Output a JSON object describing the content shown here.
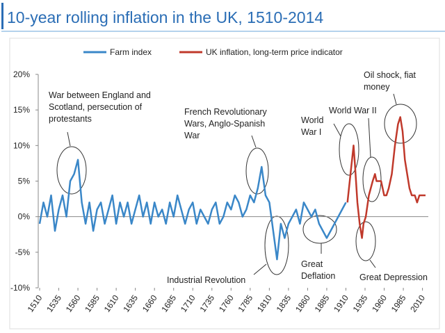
{
  "chart_data": {
    "type": "line",
    "title": "10-year rolling inflation in the UK, 1510-2014",
    "series": [
      {
        "name": "Farm index",
        "color": "#3a87c8",
        "x": [
          1510,
          1515,
          1520,
          1525,
          1530,
          1535,
          1540,
          1545,
          1550,
          1555,
          1560,
          1565,
          1570,
          1575,
          1580,
          1585,
          1590,
          1595,
          1600,
          1605,
          1610,
          1615,
          1620,
          1625,
          1630,
          1635,
          1640,
          1645,
          1650,
          1655,
          1660,
          1665,
          1670,
          1675,
          1680,
          1685,
          1690,
          1695,
          1700,
          1705,
          1710,
          1715,
          1720,
          1725,
          1730,
          1735,
          1740,
          1745,
          1750,
          1755,
          1760,
          1765,
          1770,
          1775,
          1780,
          1785,
          1790,
          1795,
          1800,
          1805,
          1810,
          1815,
          1820,
          1825,
          1830,
          1835,
          1840,
          1845,
          1850,
          1855,
          1860,
          1865,
          1870,
          1875,
          1880,
          1885,
          1890,
          1895,
          1900,
          1905,
          1910
        ],
        "values": [
          -1,
          2,
          0,
          3,
          -2,
          1,
          3,
          0,
          5,
          6,
          8,
          2,
          -1,
          2,
          -2,
          1,
          2,
          -1,
          1,
          3,
          -1,
          2,
          0,
          2,
          -1,
          1,
          3,
          0,
          2,
          -1,
          2,
          0,
          1,
          -1,
          2,
          0,
          3,
          1,
          -1,
          1,
          2,
          -1,
          1,
          0,
          -1,
          1,
          2,
          -1,
          0,
          2,
          1,
          3,
          2,
          0,
          1,
          3,
          2,
          4,
          7,
          3,
          2,
          -2,
          -6,
          -1,
          -3,
          -1,
          0,
          1,
          -1,
          2,
          1,
          0,
          1,
          -1,
          -2,
          -3,
          -2,
          -1,
          0,
          1,
          2
        ]
      },
      {
        "name": "UK inflation, long-term price indicator",
        "color": "#c0392b",
        "x": [
          1912,
          1915,
          1918,
          1920,
          1922,
          1925,
          1928,
          1931,
          1933,
          1936,
          1940,
          1945,
          1948,
          1950,
          1953,
          1956,
          1960,
          1963,
          1966,
          1970,
          1974,
          1978,
          1981,
          1984,
          1987,
          1990,
          1993,
          1996,
          2000,
          2003,
          2006,
          2010,
          2014
        ],
        "values": [
          2,
          5,
          8,
          10,
          7,
          2,
          -1,
          -3,
          -1,
          0,
          3,
          5,
          6,
          5,
          5,
          5,
          3,
          3,
          4,
          6,
          10,
          13,
          14,
          12,
          8,
          6,
          4,
          3,
          3,
          2,
          3,
          3,
          3
        ]
      }
    ],
    "xlim": [
      1510,
      2014
    ],
    "xticks": [
      1510,
      1535,
      1560,
      1585,
      1610,
      1635,
      1660,
      1685,
      1710,
      1735,
      1760,
      1785,
      1810,
      1835,
      1860,
      1885,
      1910,
      1935,
      1960,
      1985,
      2010
    ],
    "ylim": [
      -10,
      20
    ],
    "yticks": [
      {
        "value": -10,
        "label": "-10%"
      },
      {
        "value": -5,
        "label": "-5%"
      },
      {
        "value": 0,
        "label": "0%"
      },
      {
        "value": 5,
        "label": "5%"
      },
      {
        "value": 10,
        "label": "10%"
      },
      {
        "value": 15,
        "label": "15%"
      },
      {
        "value": 20,
        "label": "20%"
      }
    ],
    "legend": "top",
    "annotations": [
      [
        "War between England and",
        "Scotland, persecution of",
        "protestants"
      ],
      [
        "French Revolutionary",
        "Wars, Anglo-Spanish",
        "War"
      ],
      [
        "Industrial Revolution"
      ],
      [
        "World",
        "War I"
      ],
      [
        "World War II"
      ],
      [
        "Oil shock, fiat",
        "money"
      ],
      [
        "Great",
        "Deflation"
      ],
      [
        "Great Depression"
      ]
    ]
  }
}
